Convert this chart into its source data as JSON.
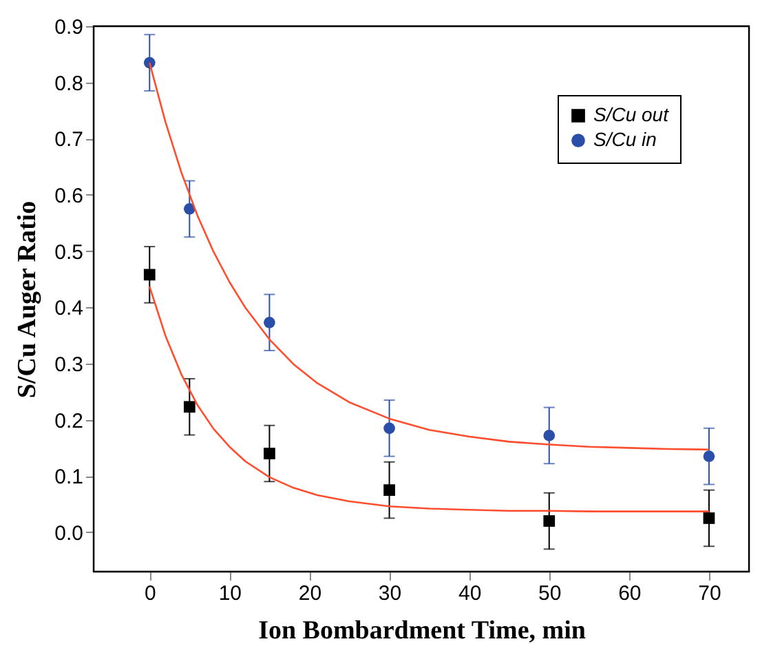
{
  "chart_data": {
    "type": "scatter",
    "xlabel": "Ion Bombardment Time, min",
    "ylabel": "S/Cu Auger Ratio",
    "xlim": [
      -7,
      75
    ],
    "xticks": [
      0,
      10,
      20,
      30,
      40,
      50,
      60,
      70
    ],
    "ylim": [
      -0.07,
      0.9
    ],
    "yticks": [
      {
        "value": 0,
        "label": "0.0"
      },
      0.1,
      0.2,
      0.3,
      0.4,
      0.5,
      0.6,
      0.7,
      0.8,
      0.9
    ],
    "legend": "top right",
    "grid": false,
    "x": [
      0,
      5,
      15,
      30,
      50,
      70
    ],
    "series": [
      {
        "name": "S/Cu out",
        "color": "#000000",
        "marker": "square",
        "values": [
          0.458,
          0.223,
          0.14,
          0.075,
          0.02,
          0.025
        ],
        "errors": [
          0.05,
          0.05,
          0.05,
          0.05,
          0.05,
          0.05
        ]
      },
      {
        "name": "S/Cu  in",
        "color": "#2b4fa8",
        "marker": "circle",
        "values": [
          0.835,
          0.575,
          0.373,
          0.185,
          0.172,
          0.135
        ],
        "errors": [
          0.05,
          0.05,
          0.05,
          0.05,
          0.05,
          0.05
        ]
      },
      {
        "type": "line",
        "color": "#ff4d2e",
        "marker": "none",
        "x": [
          0,
          2,
          4,
          6,
          8,
          10,
          12,
          15,
          18,
          21,
          25,
          30,
          35,
          40,
          45,
          50,
          55,
          60,
          65,
          70
        ],
        "values": [
          0.437,
          0.349,
          0.28,
          0.226,
          0.184,
          0.152,
          0.126,
          0.098,
          0.079,
          0.066,
          0.055,
          0.046,
          0.042,
          0.04,
          0.038,
          0.038,
          0.037,
          0.037,
          0.037,
          0.037
        ]
      },
      {
        "type": "line",
        "color": "#ff4d2e",
        "marker": "none",
        "x": [
          0,
          2,
          4,
          6,
          8,
          10,
          12,
          15,
          18,
          21,
          25,
          30,
          35,
          40,
          45,
          50,
          55,
          60,
          65,
          70
        ],
        "values": [
          0.835,
          0.729,
          0.639,
          0.563,
          0.499,
          0.445,
          0.399,
          0.343,
          0.299,
          0.265,
          0.231,
          0.202,
          0.182,
          0.17,
          0.161,
          0.156,
          0.152,
          0.15,
          0.148,
          0.147
        ]
      }
    ]
  }
}
